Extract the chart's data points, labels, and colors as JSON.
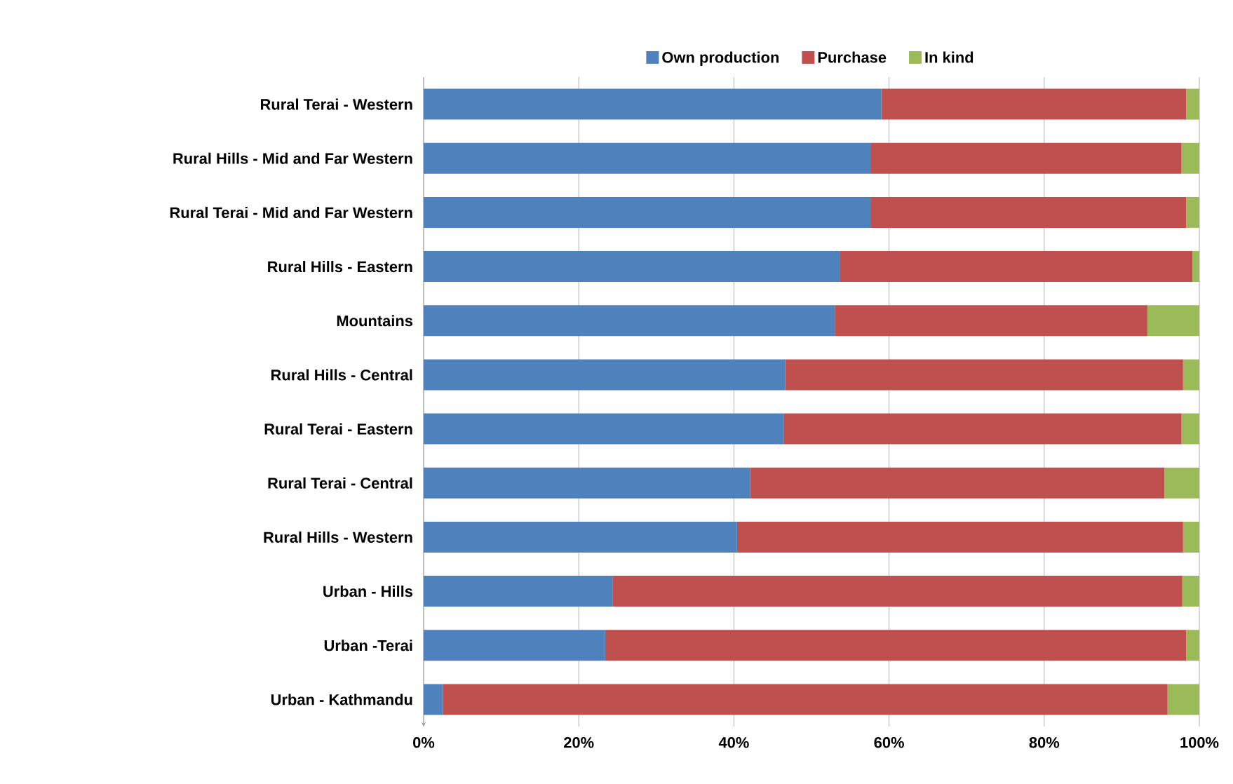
{
  "chart_data": {
    "type": "bar",
    "orientation": "horizontal",
    "stacked": true,
    "legend": "top",
    "grid": "x",
    "categories": [
      "Rural Terai - Western",
      "Rural Hills - Mid and Far Western",
      "Rural Terai - Mid and Far Western",
      "Rural Hills - Eastern",
      "Mountains",
      "Rural Hills - Central",
      "Rural Terai - Eastern",
      "Rural Terai - Central",
      "Rural Hills - Western",
      "Urban - Hills",
      "Urban -Terai",
      "Urban - Kathmandu"
    ],
    "series": [
      {
        "name": "Own production",
        "color": "#4f81bd",
        "values": [
          59.0,
          57.6,
          57.6,
          53.7,
          53.0,
          46.6,
          46.4,
          42.1,
          40.4,
          24.4,
          23.4,
          2.5
        ]
      },
      {
        "name": "Purchase",
        "color": "#c0504d",
        "values": [
          39.3,
          40.1,
          40.7,
          45.4,
          40.3,
          51.3,
          51.3,
          53.4,
          57.5,
          73.4,
          74.9,
          93.4
        ]
      },
      {
        "name": "In kind",
        "color": "#9bbb59",
        "values": [
          1.7,
          2.3,
          1.7,
          0.9,
          6.7,
          2.1,
          2.3,
          4.5,
          2.1,
          2.2,
          1.7,
          4.1
        ]
      }
    ],
    "xlim": [
      0,
      100
    ],
    "xticks": [
      {
        "value": 0,
        "label": "0%"
      },
      {
        "value": 20,
        "label": "20%"
      },
      {
        "value": 40,
        "label": "40%"
      },
      {
        "value": 60,
        "label": "60%"
      },
      {
        "value": 80,
        "label": "80%"
      },
      {
        "value": 100,
        "label": "100%"
      }
    ]
  }
}
